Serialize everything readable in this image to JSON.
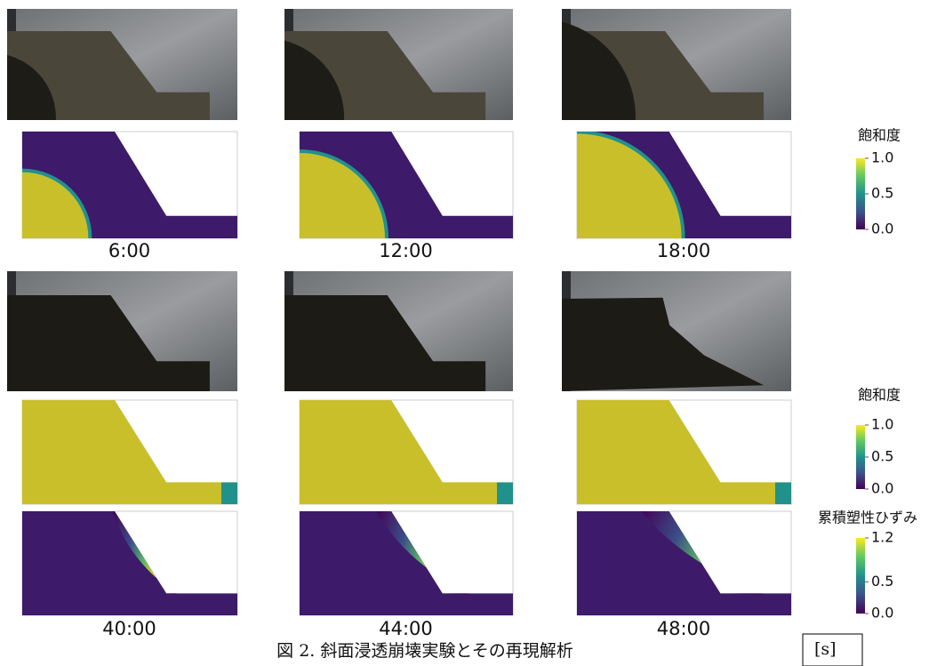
{
  "figure": {
    "rows": [
      {
        "times": [
          "6:00",
          "12:00",
          "18:00"
        ]
      },
      {
        "times": [
          "40:00",
          "44:00",
          "48:00"
        ]
      }
    ],
    "colorbars": [
      {
        "title": "飽和度",
        "ticks": [
          "1.0",
          "0.5",
          "0.0"
        ]
      },
      {
        "title": "飽和度",
        "ticks": [
          "1.0",
          "0.5",
          "0.0"
        ]
      },
      {
        "title": "累積塑性ひずみ",
        "ticks": [
          "1.2",
          "0.5",
          "0.0"
        ]
      }
    ],
    "caption": "図 2. 斜面浸透崩壊実験とその再現解析",
    "unit_box": "[s]"
  }
}
